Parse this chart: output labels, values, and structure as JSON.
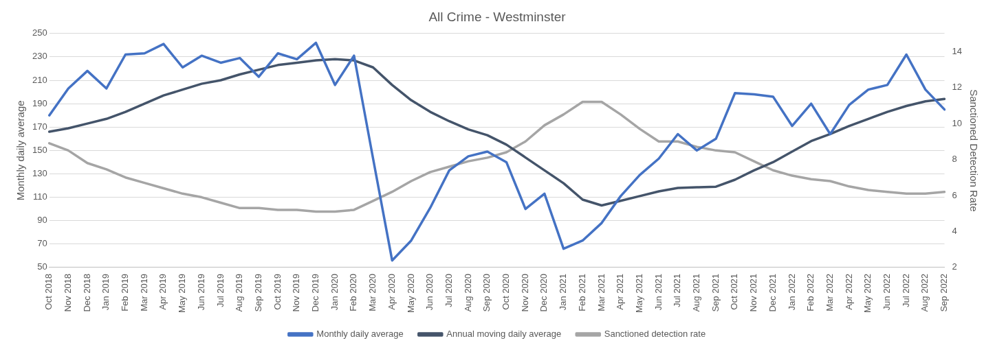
{
  "chart_data": {
    "type": "line",
    "title": "All Crime - Westminster",
    "ylabel": "Monthly daily average",
    "y2label": "Sanctioned Detection Rate",
    "categories": [
      "Oct 2018",
      "Nov 2018",
      "Dec 2018",
      "Jan 2019",
      "Feb 2019",
      "Mar 2019",
      "Apr 2019",
      "May 2019",
      "Jun 2019",
      "Jul 2019",
      "Aug 2019",
      "Sep 2019",
      "Oct 2019",
      "Nov 2019",
      "Dec 2019",
      "Jan 2020",
      "Feb 2020",
      "Mar 2020",
      "Apr 2020",
      "May 2020",
      "Jun 2020",
      "Jul 2020",
      "Aug 2020",
      "Sep 2020",
      "Oct 2020",
      "Nov 2020",
      "Dec 2020",
      "Jan 2021",
      "Feb 2021",
      "Mar 2021",
      "Apr 2021",
      "May 2021",
      "Jun 2021",
      "Jul 2021",
      "Aug 2021",
      "Sep 2021",
      "Oct 2021",
      "Nov 2021",
      "Dec 2021",
      "Jan 2022",
      "Feb 2022",
      "Mar 2022",
      "Apr 2022",
      "May 2022",
      "Jun 2022",
      "Jul 2022",
      "Aug 2022",
      "Sep 2022"
    ],
    "series": [
      {
        "name": "Monthly daily average",
        "color": "#4472c4",
        "values": [
          180,
          203,
          218,
          203,
          232,
          233,
          241,
          221,
          231,
          225,
          229,
          213,
          233,
          228,
          242,
          206,
          231,
          143,
          56,
          73,
          101,
          133,
          145,
          149,
          140,
          100,
          113,
          66,
          73,
          88,
          111,
          129,
          143,
          164,
          150,
          160,
          199,
          198,
          196,
          171,
          190,
          164,
          189,
          202,
          206,
          232,
          202,
          185
        ]
      },
      {
        "name": "Annual moving daily average",
        "color": "#44546a",
        "values": [
          166,
          169,
          173,
          177,
          183,
          190,
          197,
          202,
          207,
          210,
          215,
          219,
          223,
          225,
          227,
          228,
          227,
          221,
          206,
          193,
          183,
          175,
          168,
          163,
          155,
          144,
          133,
          122,
          108,
          103,
          107,
          111,
          115,
          118,
          118.5,
          119,
          125,
          133,
          140,
          149,
          158,
          164,
          171,
          177,
          183,
          188,
          192,
          194
        ]
      },
      {
        "name": "Sanctioned detection rate",
        "color": "#a5a5a5",
        "axis": "y2",
        "values": [
          8.9,
          8.5,
          7.8,
          7.45,
          7.0,
          6.7,
          6.4,
          6.1,
          5.9,
          5.6,
          5.3,
          5.3,
          5.2,
          5.2,
          5.1,
          5.1,
          5.2,
          5.7,
          6.2,
          6.8,
          7.3,
          7.6,
          7.9,
          8.1,
          8.4,
          9.0,
          9.9,
          10.5,
          11.2,
          11.2,
          10.5,
          9.7,
          9.0,
          9.0,
          8.7,
          8.5,
          8.4,
          7.9,
          7.4,
          7.1,
          6.9,
          6.8,
          6.5,
          6.3,
          6.2,
          6.1,
          6.1,
          6.2
        ]
      }
    ],
    "ylim": [
      50,
      250
    ],
    "yticks": [
      50,
      70,
      90,
      110,
      130,
      150,
      170,
      190,
      210,
      230,
      250
    ],
    "y2lim": [
      2,
      15
    ],
    "y2ticks": [
      2,
      4,
      6,
      8,
      10,
      12,
      14
    ],
    "grid": "y",
    "legend": "bottom",
    "marker": "none",
    "line_style": "solid"
  }
}
